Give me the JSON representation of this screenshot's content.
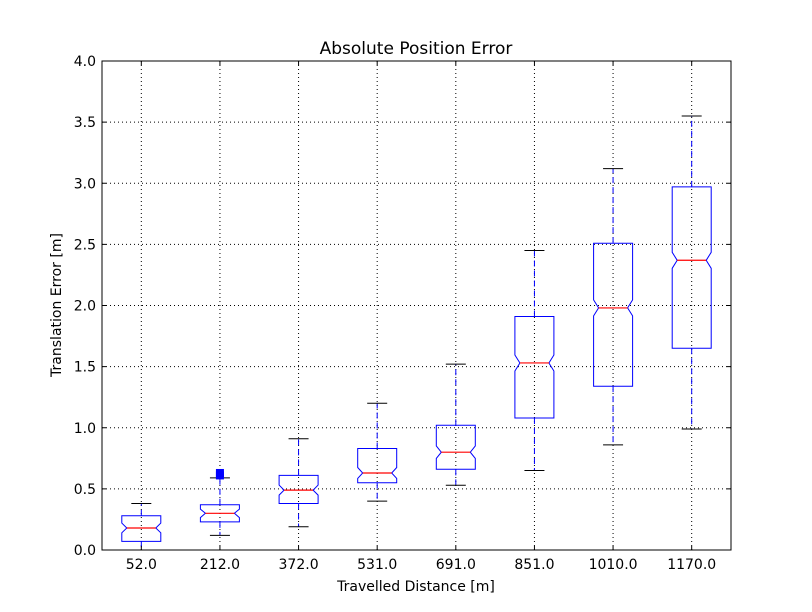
{
  "chart_data": {
    "type": "box",
    "title": "Absolute Position Error",
    "xlabel": "Travelled Distance [m]",
    "ylabel": "Translation Error [m]",
    "ylim": [
      0.0,
      4.0
    ],
    "yticks": [
      "0.0",
      "0.5",
      "1.0",
      "1.5",
      "2.0",
      "2.5",
      "3.0",
      "3.5",
      "4.0"
    ],
    "grid": true,
    "notched": true,
    "categories": [
      "52.0",
      "212.0",
      "372.0",
      "531.0",
      "691.0",
      "851.0",
      "1010.0",
      "1170.0"
    ],
    "boxes": [
      {
        "category": "52.0",
        "whisker_low": 0.0,
        "q1": 0.07,
        "median": 0.18,
        "q3": 0.28,
        "whisker_high": 0.38,
        "outliers": []
      },
      {
        "category": "212.0",
        "whisker_low": 0.12,
        "q1": 0.23,
        "median": 0.3,
        "q3": 0.37,
        "whisker_high": 0.59,
        "outliers": [
          0.61,
          0.63
        ]
      },
      {
        "category": "372.0",
        "whisker_low": 0.19,
        "q1": 0.38,
        "median": 0.49,
        "q3": 0.61,
        "whisker_high": 0.91,
        "outliers": []
      },
      {
        "category": "531.0",
        "whisker_low": 0.4,
        "q1": 0.55,
        "median": 0.63,
        "q3": 0.83,
        "whisker_high": 1.2,
        "outliers": []
      },
      {
        "category": "691.0",
        "whisker_low": 0.53,
        "q1": 0.66,
        "median": 0.8,
        "q3": 1.02,
        "whisker_high": 1.52,
        "outliers": []
      },
      {
        "category": "851.0",
        "whisker_low": 0.65,
        "q1": 1.08,
        "median": 1.53,
        "q3": 1.91,
        "whisker_high": 2.45,
        "outliers": []
      },
      {
        "category": "1010.0",
        "whisker_low": 0.86,
        "q1": 1.34,
        "median": 1.98,
        "q3": 2.51,
        "whisker_high": 3.12,
        "outliers": []
      },
      {
        "category": "1170.0",
        "whisker_low": 0.99,
        "q1": 1.65,
        "median": 2.37,
        "q3": 2.97,
        "whisker_high": 3.55,
        "outliers": []
      }
    ],
    "colors": {
      "box": "#0000ff",
      "median": "#ff0000",
      "whisker_cap": "#000000",
      "grid": "#000000"
    }
  }
}
